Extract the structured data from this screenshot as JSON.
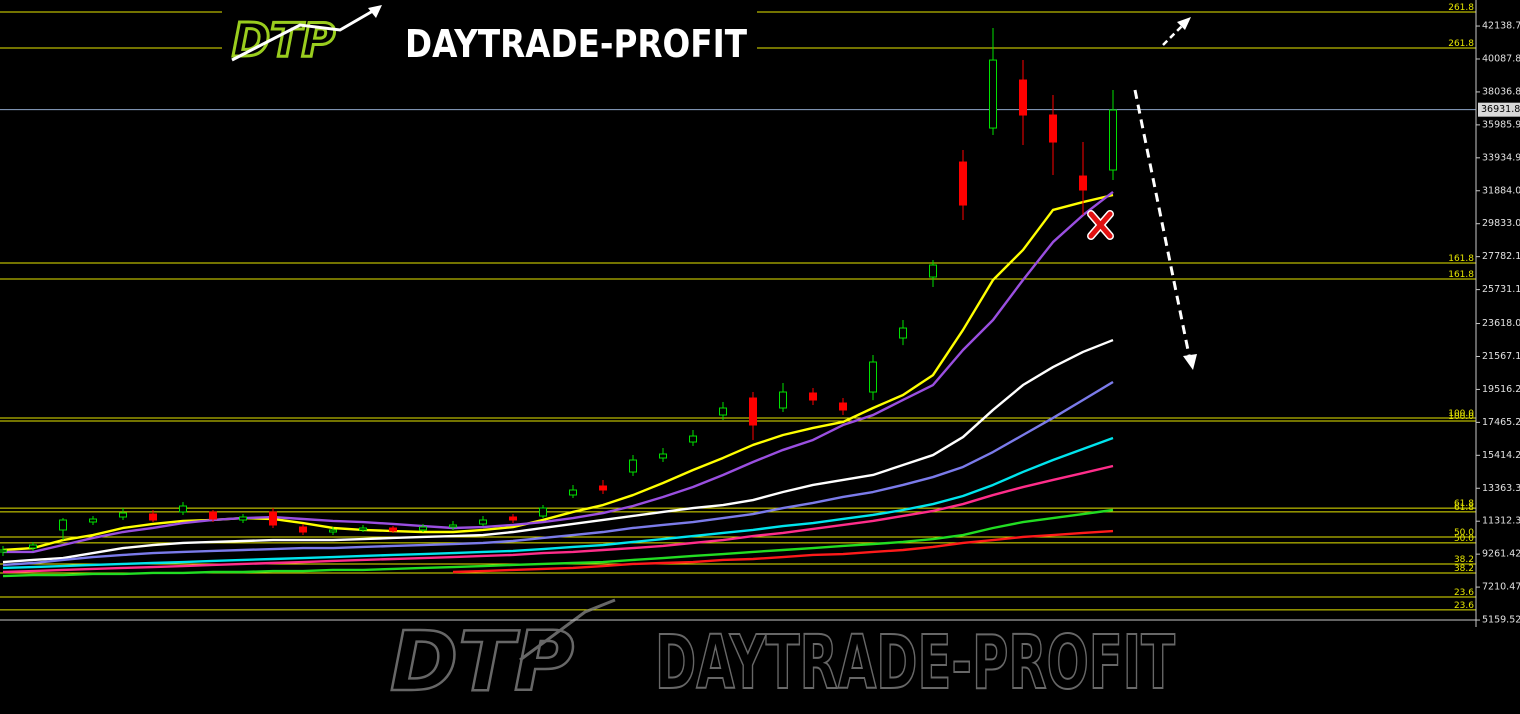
{
  "logo": {
    "mark": "DTP",
    "name": "DAYTRADE-PROFIT"
  },
  "watermark": {
    "mark": "DTP",
    "name": "DAYTRADE-PROFIT"
  },
  "chart_data": {
    "type": "candlestick",
    "categories": [
      null,
      null,
      null,
      null,
      null,
      null,
      null,
      null,
      null,
      null,
      null,
      null,
      null,
      null,
      null,
      null,
      null,
      null,
      null,
      null,
      null,
      null,
      null,
      null,
      null,
      null,
      null,
      null,
      null,
      null,
      null,
      null,
      null,
      null,
      null,
      null,
      null,
      null
    ],
    "open": [
      9395,
      9644,
      10765,
      11263,
      11574,
      11761,
      11886,
      11886,
      11387,
      11886,
      10952,
      10640,
      10765,
      10889,
      10765,
      10952,
      11138,
      11574,
      11636,
      12944,
      13504,
      14375,
      15247,
      16243,
      17924,
      18982,
      18360,
      19293,
      18670,
      19355,
      22717,
      26514,
      33673,
      35789,
      38778,
      36599,
      32801,
      33175
    ],
    "high": [
      9769,
      10018,
      11512,
      11636,
      12134,
      12010,
      12508,
      12010,
      11761,
      12134,
      11138,
      10952,
      11076,
      11014,
      11138,
      11325,
      11636,
      11761,
      12321,
      13566,
      13877,
      15434,
      15869,
      16990,
      18733,
      19355,
      19916,
      19604,
      18982,
      21659,
      23837,
      27572,
      34420,
      42014,
      40022,
      37844,
      34918,
      38155
    ],
    "low": [
      9146,
      9458,
      10142,
      11076,
      11387,
      11263,
      11698,
      11263,
      11201,
      10889,
      10453,
      10453,
      10640,
      10578,
      10640,
      10765,
      11014,
      11201,
      11512,
      12757,
      13006,
      14126,
      14999,
      15994,
      17613,
      16367,
      18110,
      18546,
      17924,
      18847,
      22275,
      25892,
      30063,
      35354,
      34731,
      32864,
      30374,
      32553
    ],
    "close": [
      9520,
      9831,
      11387,
      11449,
      11823,
      11387,
      12259,
      11449,
      11574,
      11076,
      10640,
      10765,
      10889,
      10703,
      10952,
      11076,
      11387,
      11387,
      12134,
      13255,
      13255,
      15122,
      15496,
      16616,
      18360,
      17301,
      19355,
      18857,
      18235,
      21223,
      23339,
      27261,
      30996,
      40022,
      36599,
      34918,
      31930,
      36910
    ],
    "up_color": "#00e000",
    "down_color": "#ff0000",
    "series": [
      {
        "color": "#ffff00",
        "values": [
          9520,
          9640,
          10140,
          10450,
          10890,
          11140,
          11330,
          11390,
          11510,
          11450,
          11200,
          10890,
          10770,
          10700,
          10640,
          10640,
          10770,
          10950,
          11390,
          11890,
          12320,
          12940,
          13690,
          14500,
          15250,
          16060,
          16680,
          17120,
          17490,
          18360,
          19170,
          20410,
          23220,
          26330,
          28200,
          30690,
          31180,
          31620
        ]
      },
      {
        "color": "#9a4fe0",
        "values": [
          9400,
          9400,
          9830,
          10270,
          10640,
          10890,
          11200,
          11390,
          11510,
          11570,
          11450,
          11330,
          11260,
          11140,
          11010,
          10890,
          10950,
          11080,
          11260,
          11510,
          11820,
          12260,
          12820,
          13440,
          14190,
          15000,
          15750,
          16370,
          17300,
          17920,
          18860,
          19790,
          21970,
          23840,
          26330,
          28690,
          30370,
          31810
        ]
      },
      {
        "color": "#ffffff",
        "values": [
          8770,
          8900,
          9020,
          9330,
          9640,
          9830,
          9960,
          10020,
          10080,
          10140,
          10140,
          10140,
          10200,
          10270,
          10330,
          10390,
          10450,
          10640,
          10890,
          11140,
          11390,
          11640,
          11890,
          12130,
          12320,
          12630,
          13130,
          13570,
          13880,
          14190,
          14810,
          15430,
          16550,
          18240,
          19790,
          20910,
          21850,
          22590
        ]
      },
      {
        "color": "#7b7bea",
        "values": [
          8590,
          8710,
          8900,
          9080,
          9210,
          9330,
          9400,
          9460,
          9520,
          9580,
          9640,
          9640,
          9710,
          9770,
          9830,
          9890,
          9960,
          10080,
          10270,
          10450,
          10640,
          10890,
          11080,
          11260,
          11510,
          11760,
          12130,
          12450,
          12820,
          13130,
          13570,
          14060,
          14690,
          15620,
          16680,
          17740,
          18860,
          19980
        ]
      },
      {
        "color": "#00e5ee",
        "values": [
          8400,
          8460,
          8520,
          8590,
          8650,
          8710,
          8770,
          8840,
          8900,
          8960,
          9020,
          9080,
          9150,
          9210,
          9270,
          9330,
          9400,
          9460,
          9580,
          9710,
          9830,
          10020,
          10200,
          10390,
          10580,
          10770,
          11010,
          11200,
          11450,
          11700,
          12010,
          12380,
          12880,
          13570,
          14380,
          15120,
          15810,
          16490
        ]
      },
      {
        "color": "#ff2d8a",
        "values": [
          8150,
          8210,
          8280,
          8340,
          8400,
          8460,
          8520,
          8590,
          8650,
          8710,
          8770,
          8840,
          8900,
          8960,
          9020,
          9080,
          9150,
          9210,
          9330,
          9400,
          9520,
          9640,
          9770,
          9960,
          10140,
          10390,
          10580,
          10830,
          11080,
          11330,
          11640,
          11950,
          12380,
          12940,
          13440,
          13880,
          14310,
          14750
        ]
      },
      {
        "color": "#22dd22",
        "values": [
          7900,
          7960,
          7960,
          8030,
          8030,
          8090,
          8090,
          8150,
          8150,
          8210,
          8210,
          8280,
          8280,
          8340,
          8400,
          8460,
          8520,
          8590,
          8650,
          8710,
          8770,
          8900,
          9020,
          9150,
          9270,
          9400,
          9520,
          9640,
          9770,
          9890,
          10020,
          10200,
          10450,
          10890,
          11260,
          11510,
          11760,
          12010
        ]
      },
      {
        "color": "#ff1a1a",
        "values": [
          null,
          null,
          null,
          null,
          null,
          null,
          null,
          null,
          null,
          null,
          null,
          null,
          null,
          null,
          null,
          8150,
          8210,
          8280,
          8340,
          8400,
          8520,
          8650,
          8710,
          8770,
          8900,
          8960,
          9080,
          9210,
          9270,
          9400,
          9520,
          9710,
          9960,
          10140,
          10330,
          10450,
          10580,
          10700
        ]
      }
    ],
    "ylim": [
      -690,
      43760
    ],
    "yticks": [
      42138.77,
      40087.82,
      38036.87,
      35985.92,
      33934.97,
      31884.02,
      29833.07,
      27782.12,
      25731.17,
      23618.07,
      21567.12,
      19516.22,
      17465.22,
      15414.27,
      13363.32,
      11312.37,
      9261.42,
      7210.47,
      5159.52
    ],
    "levels": [
      {
        "value": 43010,
        "label": "261.8"
      },
      {
        "value": 40770,
        "label": "261.8"
      },
      {
        "value": 27390,
        "label": "161.8"
      },
      {
        "value": 26390,
        "label": "161.8"
      },
      {
        "value": 17740,
        "label": "100.0"
      },
      {
        "value": 17550,
        "label": "100.0"
      },
      {
        "value": 12130,
        "label": "61.8"
      },
      {
        "value": 11890,
        "label": "61.8"
      },
      {
        "value": 10330,
        "label": "50.0"
      },
      {
        "value": 9960,
        "label": "50.0"
      },
      {
        "value": 8650,
        "label": "38.2"
      },
      {
        "value": 8090,
        "label": "38.2"
      },
      {
        "value": 6590,
        "label": "23.6"
      },
      {
        "value": 5790,
        "label": "23.6"
      }
    ],
    "level_color": "#e6e600",
    "last_price": 36931.85,
    "grid": false
  }
}
